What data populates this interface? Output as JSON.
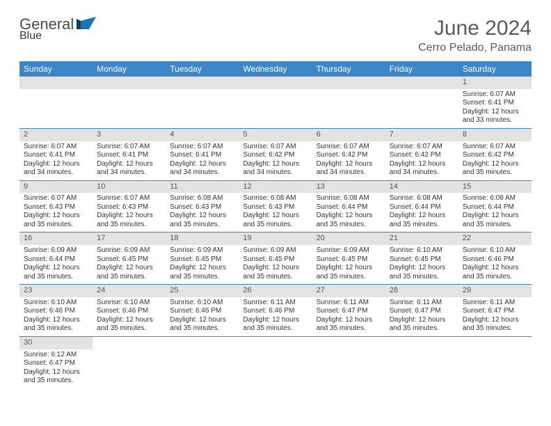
{
  "logo": {
    "general": "General",
    "blue": "Blue"
  },
  "header": {
    "title": "June 2024",
    "location": "Cerro Pelado, Panama"
  },
  "style": {
    "header_bg": "#3b87c8",
    "header_text": "#ffffff",
    "daynum_bg": "#e3e3e3",
    "border_color": "#3b87c8",
    "title_color": "#5a5a5a",
    "body_text": "#333333",
    "title_fontsize": 30,
    "subtitle_fontsize": 16,
    "dayheader_fontsize": 12,
    "cell_fontsize": 10
  },
  "days_of_week": [
    "Sunday",
    "Monday",
    "Tuesday",
    "Wednesday",
    "Thursday",
    "Friday",
    "Saturday"
  ],
  "weeks": [
    [
      null,
      null,
      null,
      null,
      null,
      null,
      {
        "n": "1",
        "sr": "Sunrise: 6:07 AM",
        "ss": "Sunset: 6:41 PM",
        "d1": "Daylight: 12 hours",
        "d2": "and 33 minutes."
      }
    ],
    [
      {
        "n": "2",
        "sr": "Sunrise: 6:07 AM",
        "ss": "Sunset: 6:41 PM",
        "d1": "Daylight: 12 hours",
        "d2": "and 34 minutes."
      },
      {
        "n": "3",
        "sr": "Sunrise: 6:07 AM",
        "ss": "Sunset: 6:41 PM",
        "d1": "Daylight: 12 hours",
        "d2": "and 34 minutes."
      },
      {
        "n": "4",
        "sr": "Sunrise: 6:07 AM",
        "ss": "Sunset: 6:41 PM",
        "d1": "Daylight: 12 hours",
        "d2": "and 34 minutes."
      },
      {
        "n": "5",
        "sr": "Sunrise: 6:07 AM",
        "ss": "Sunset: 6:42 PM",
        "d1": "Daylight: 12 hours",
        "d2": "and 34 minutes."
      },
      {
        "n": "6",
        "sr": "Sunrise: 6:07 AM",
        "ss": "Sunset: 6:42 PM",
        "d1": "Daylight: 12 hours",
        "d2": "and 34 minutes."
      },
      {
        "n": "7",
        "sr": "Sunrise: 6:07 AM",
        "ss": "Sunset: 6:42 PM",
        "d1": "Daylight: 12 hours",
        "d2": "and 34 minutes."
      },
      {
        "n": "8",
        "sr": "Sunrise: 6:07 AM",
        "ss": "Sunset: 6:42 PM",
        "d1": "Daylight: 12 hours",
        "d2": "and 35 minutes."
      }
    ],
    [
      {
        "n": "9",
        "sr": "Sunrise: 6:07 AM",
        "ss": "Sunset: 6:43 PM",
        "d1": "Daylight: 12 hours",
        "d2": "and 35 minutes."
      },
      {
        "n": "10",
        "sr": "Sunrise: 6:07 AM",
        "ss": "Sunset: 6:43 PM",
        "d1": "Daylight: 12 hours",
        "d2": "and 35 minutes."
      },
      {
        "n": "11",
        "sr": "Sunrise: 6:08 AM",
        "ss": "Sunset: 6:43 PM",
        "d1": "Daylight: 12 hours",
        "d2": "and 35 minutes."
      },
      {
        "n": "12",
        "sr": "Sunrise: 6:08 AM",
        "ss": "Sunset: 6:43 PM",
        "d1": "Daylight: 12 hours",
        "d2": "and 35 minutes."
      },
      {
        "n": "13",
        "sr": "Sunrise: 6:08 AM",
        "ss": "Sunset: 6:44 PM",
        "d1": "Daylight: 12 hours",
        "d2": "and 35 minutes."
      },
      {
        "n": "14",
        "sr": "Sunrise: 6:08 AM",
        "ss": "Sunset: 6:44 PM",
        "d1": "Daylight: 12 hours",
        "d2": "and 35 minutes."
      },
      {
        "n": "15",
        "sr": "Sunrise: 6:08 AM",
        "ss": "Sunset: 6:44 PM",
        "d1": "Daylight: 12 hours",
        "d2": "and 35 minutes."
      }
    ],
    [
      {
        "n": "16",
        "sr": "Sunrise: 6:09 AM",
        "ss": "Sunset: 6:44 PM",
        "d1": "Daylight: 12 hours",
        "d2": "and 35 minutes."
      },
      {
        "n": "17",
        "sr": "Sunrise: 6:09 AM",
        "ss": "Sunset: 6:45 PM",
        "d1": "Daylight: 12 hours",
        "d2": "and 35 minutes."
      },
      {
        "n": "18",
        "sr": "Sunrise: 6:09 AM",
        "ss": "Sunset: 6:45 PM",
        "d1": "Daylight: 12 hours",
        "d2": "and 35 minutes."
      },
      {
        "n": "19",
        "sr": "Sunrise: 6:09 AM",
        "ss": "Sunset: 6:45 PM",
        "d1": "Daylight: 12 hours",
        "d2": "and 35 minutes."
      },
      {
        "n": "20",
        "sr": "Sunrise: 6:09 AM",
        "ss": "Sunset: 6:45 PM",
        "d1": "Daylight: 12 hours",
        "d2": "and 35 minutes."
      },
      {
        "n": "21",
        "sr": "Sunrise: 6:10 AM",
        "ss": "Sunset: 6:45 PM",
        "d1": "Daylight: 12 hours",
        "d2": "and 35 minutes."
      },
      {
        "n": "22",
        "sr": "Sunrise: 6:10 AM",
        "ss": "Sunset: 6:46 PM",
        "d1": "Daylight: 12 hours",
        "d2": "and 35 minutes."
      }
    ],
    [
      {
        "n": "23",
        "sr": "Sunrise: 6:10 AM",
        "ss": "Sunset: 6:46 PM",
        "d1": "Daylight: 12 hours",
        "d2": "and 35 minutes."
      },
      {
        "n": "24",
        "sr": "Sunrise: 6:10 AM",
        "ss": "Sunset: 6:46 PM",
        "d1": "Daylight: 12 hours",
        "d2": "and 35 minutes."
      },
      {
        "n": "25",
        "sr": "Sunrise: 6:10 AM",
        "ss": "Sunset: 6:46 PM",
        "d1": "Daylight: 12 hours",
        "d2": "and 35 minutes."
      },
      {
        "n": "26",
        "sr": "Sunrise: 6:11 AM",
        "ss": "Sunset: 6:46 PM",
        "d1": "Daylight: 12 hours",
        "d2": "and 35 minutes."
      },
      {
        "n": "27",
        "sr": "Sunrise: 6:11 AM",
        "ss": "Sunset: 6:47 PM",
        "d1": "Daylight: 12 hours",
        "d2": "and 35 minutes."
      },
      {
        "n": "28",
        "sr": "Sunrise: 6:11 AM",
        "ss": "Sunset: 6:47 PM",
        "d1": "Daylight: 12 hours",
        "d2": "and 35 minutes."
      },
      {
        "n": "29",
        "sr": "Sunrise: 6:11 AM",
        "ss": "Sunset: 6:47 PM",
        "d1": "Daylight: 12 hours",
        "d2": "and 35 minutes."
      }
    ],
    [
      {
        "n": "30",
        "sr": "Sunrise: 6:12 AM",
        "ss": "Sunset: 6:47 PM",
        "d1": "Daylight: 12 hours",
        "d2": "and 35 minutes."
      },
      null,
      null,
      null,
      null,
      null,
      null
    ]
  ]
}
